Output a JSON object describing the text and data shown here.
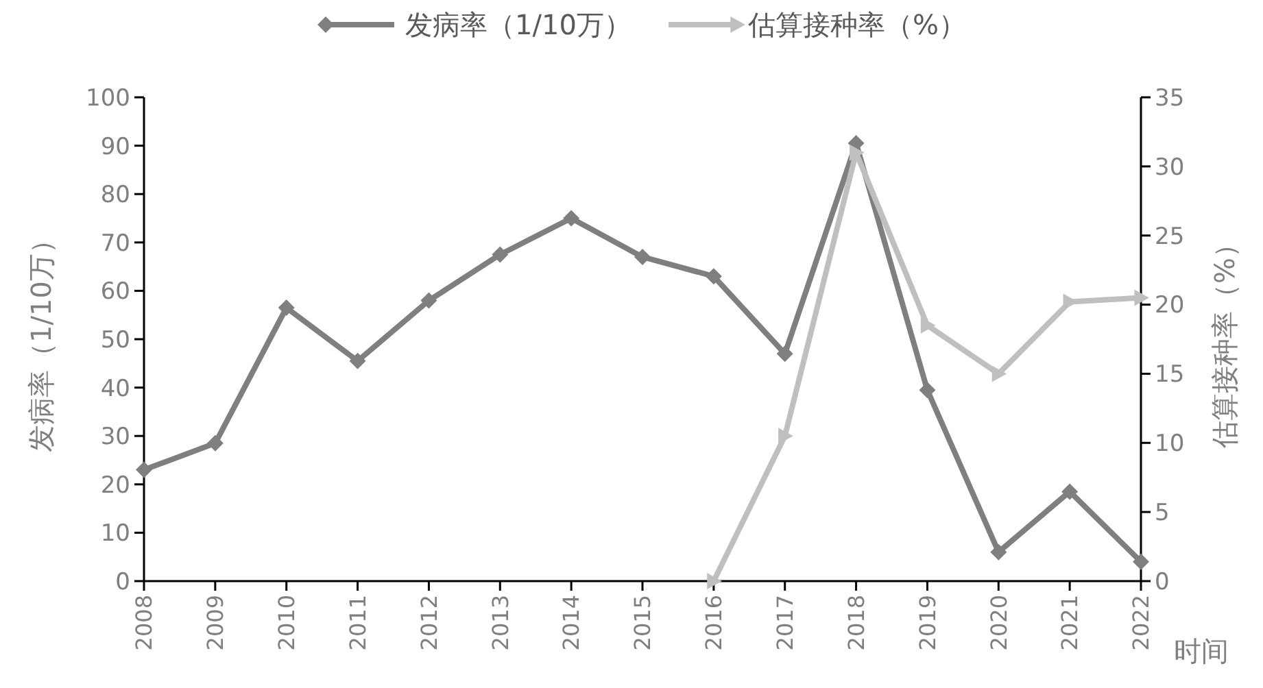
{
  "chart_data": {
    "type": "line",
    "xlabel": "时间",
    "ylabel": "发病率（1/10万）",
    "y2label": "估算接种率（%）",
    "categories": [
      "2008",
      "2009",
      "2010",
      "2011",
      "2012",
      "2013",
      "2014",
      "2015",
      "2016",
      "2017",
      "2018",
      "2019",
      "2020",
      "2021",
      "2022"
    ],
    "series": [
      {
        "name": "发病率（1/10万）",
        "color": "#7f7f7f",
        "marker": "diamond",
        "values": [
          23,
          28.5,
          56.5,
          45.5,
          58,
          67.5,
          75,
          67,
          63,
          47,
          90.5,
          39.5,
          6,
          18.5,
          4
        ]
      },
      {
        "name": "估算接种率（%）",
        "color": "#bfbfbf",
        "marker": "triangle",
        "axis": "y2",
        "values": [
          null,
          null,
          null,
          null,
          null,
          null,
          null,
          null,
          0,
          10.5,
          31,
          18.5,
          15,
          20.2,
          20.5
        ]
      }
    ],
    "ylim": [
      0,
      100
    ],
    "yticks": [
      0,
      10,
      20,
      30,
      40,
      50,
      60,
      70,
      80,
      90,
      100
    ],
    "y2lim": [
      0,
      35
    ],
    "y2ticks": [
      0,
      5,
      10,
      15,
      20,
      25,
      30,
      35
    ],
    "legend": "top",
    "grid": false
  }
}
